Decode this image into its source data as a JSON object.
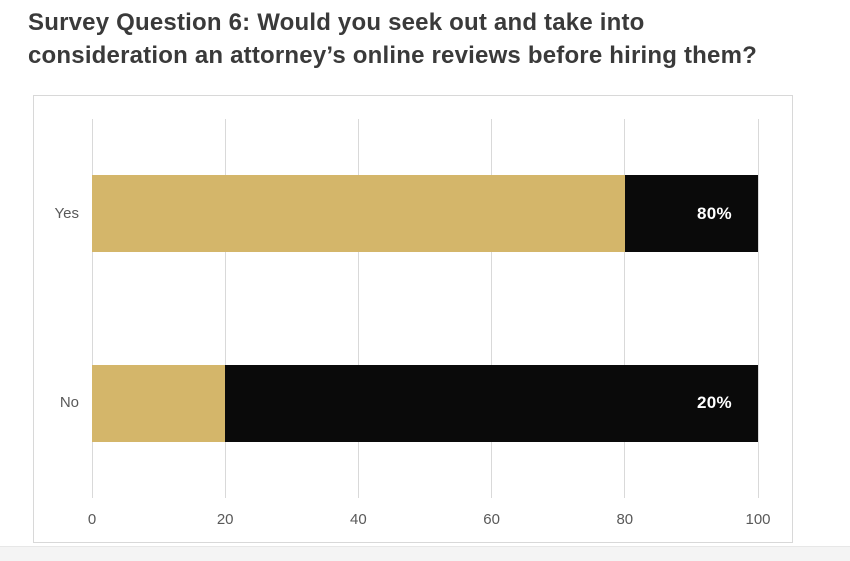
{
  "header": {
    "title_line1": "Survey Question 6: Would you seek out and take into",
    "title_line2": "consideration an attorney’s online reviews before hiring them?"
  },
  "chart_data": {
    "type": "bar",
    "orientation": "horizontal",
    "stacked": true,
    "title": "Survey Question 6: Would you seek out and take into consideration an attorney’s online reviews before hiring them?",
    "categories": [
      "Yes",
      "No"
    ],
    "values": [
      80,
      20
    ],
    "data_labels": [
      "80%",
      "20%"
    ],
    "series": [
      {
        "name": "response-share",
        "color": "#d4b66a",
        "values": [
          80,
          20
        ]
      },
      {
        "name": "remainder",
        "color": "#0a0a0a",
        "values": [
          20,
          80
        ]
      }
    ],
    "x_ticks": [
      "0",
      "20",
      "40",
      "60",
      "80",
      "100"
    ],
    "xlim": [
      0,
      100
    ],
    "grid": true,
    "legend": "none",
    "colors": {
      "bar_gold": "#d4b66a",
      "bar_black": "#0a0a0a",
      "data_label_text": "#ffffff",
      "axis_text": "#595959",
      "gridline": "#d9d9d9",
      "panel_border": "#d8d8d8",
      "title_text": "#3a3a3a",
      "footer_strip": "#f4f4f4"
    }
  }
}
